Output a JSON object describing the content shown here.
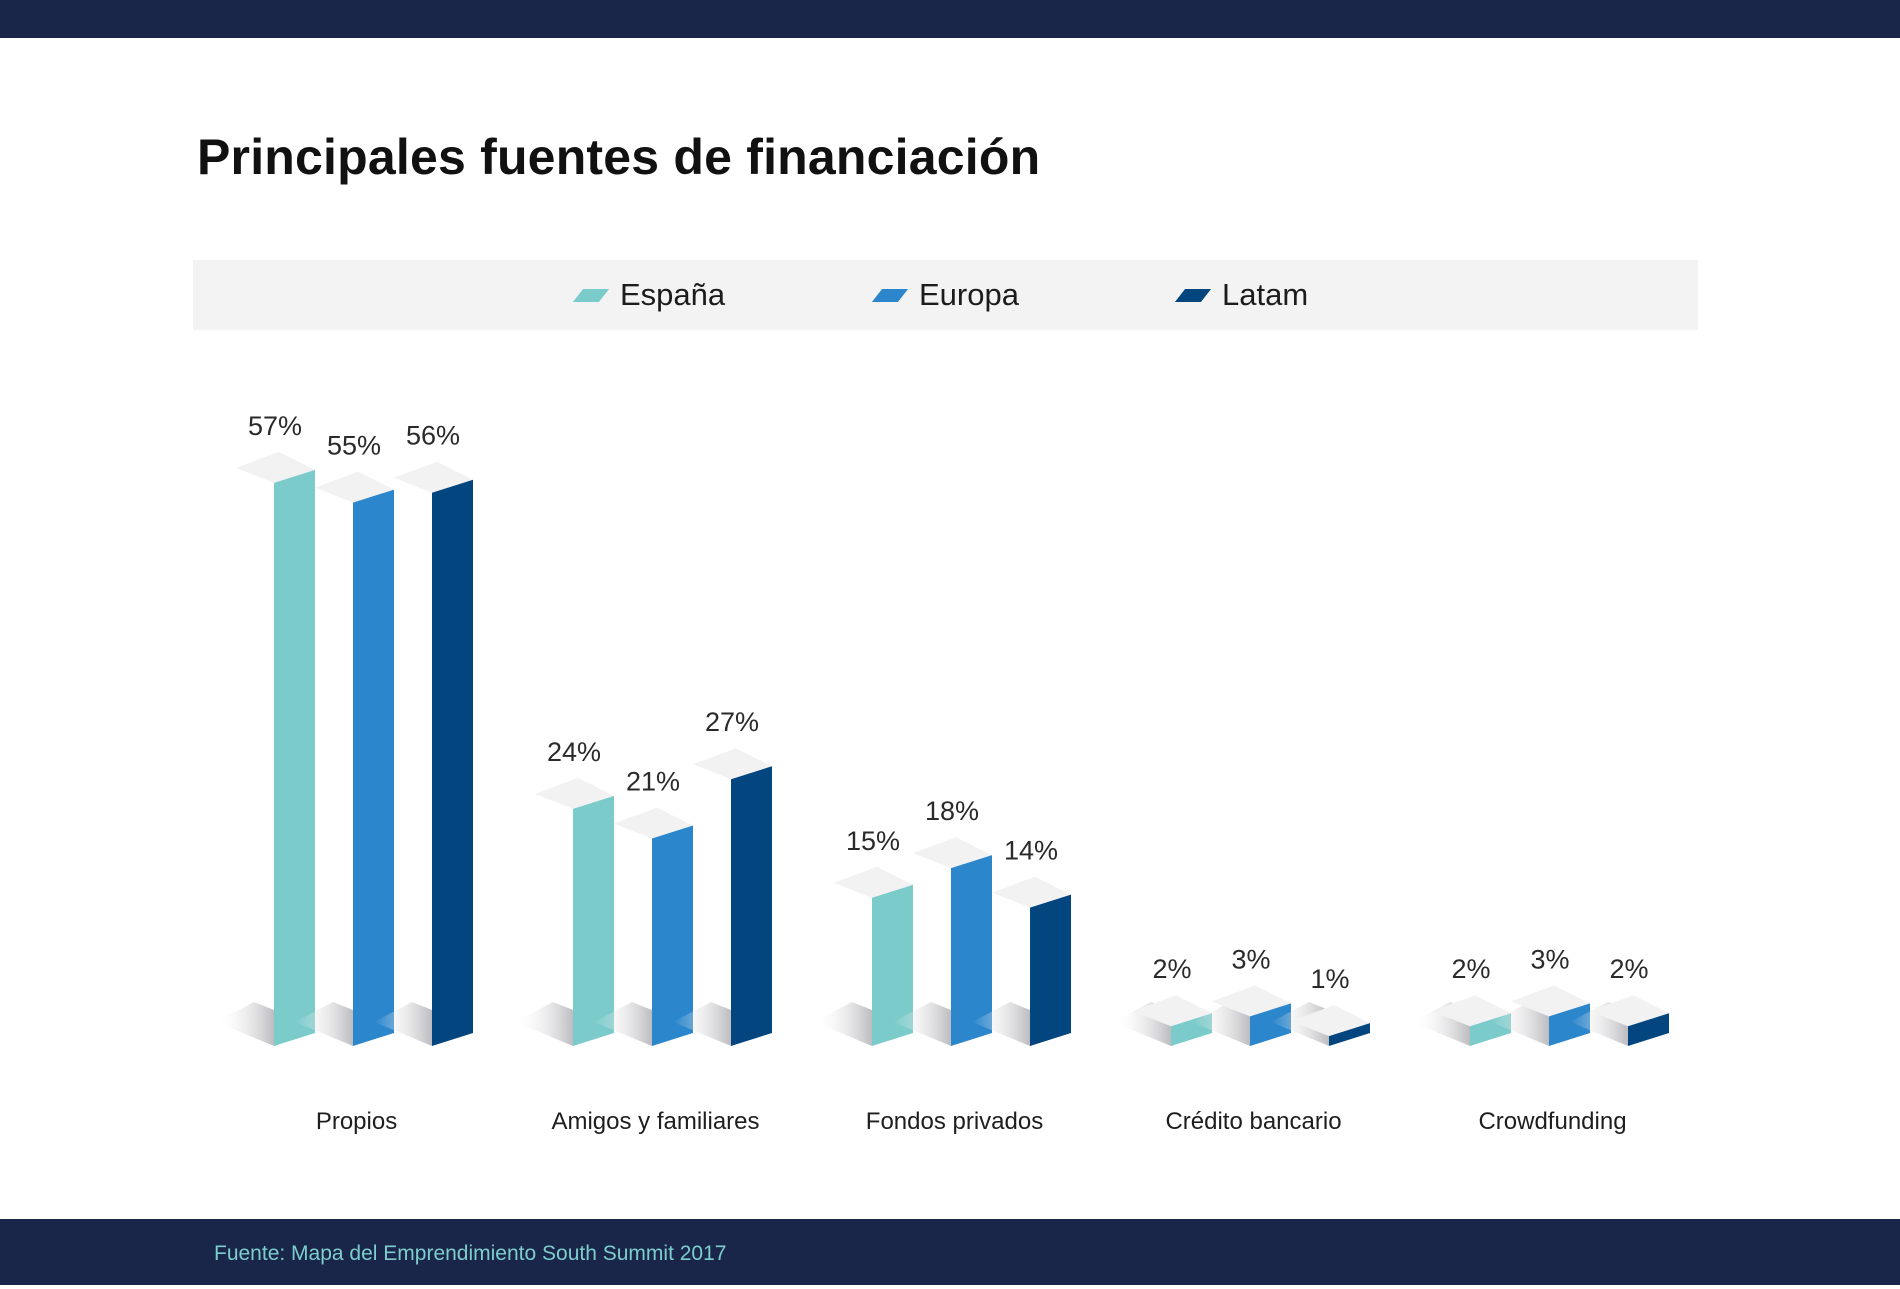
{
  "header": {
    "title": "Principales fuentes de financiación"
  },
  "legend": [
    {
      "label": "España",
      "color": "#7ccbcb"
    },
    {
      "label": "Europa",
      "color": "#2b86cc"
    },
    {
      "label": "Latam",
      "color": "#03457f"
    }
  ],
  "footer": {
    "source": "Fuente: Mapa del Emprendimiento South Summit 2017"
  },
  "chart_data": {
    "type": "bar",
    "title": "Principales fuentes de financiación",
    "categories": [
      "Propios",
      "Amigos y familiares",
      "Fondos privados",
      "Crédito bancario",
      "Crowdfunding"
    ],
    "series": [
      {
        "name": "España",
        "color": "#7ccbcb",
        "values": [
          57,
          24,
          15,
          2,
          2
        ],
        "labels": [
          "57%",
          "24%",
          "15%",
          "2%",
          "2%"
        ]
      },
      {
        "name": "Europa",
        "color": "#2b86cc",
        "values": [
          55,
          21,
          18,
          3,
          3
        ],
        "labels": [
          "55%",
          "21%",
          "18%",
          "3%",
          "3%"
        ]
      },
      {
        "name": "Latam",
        "color": "#03457f",
        "values": [
          56,
          27,
          14,
          1,
          2
        ],
        "labels": [
          "56%",
          "27%",
          "14%",
          "1%",
          "2%"
        ]
      }
    ],
    "unit": "%",
    "ylim": [
      0,
      60
    ],
    "grid": false,
    "legend_position": "top"
  }
}
